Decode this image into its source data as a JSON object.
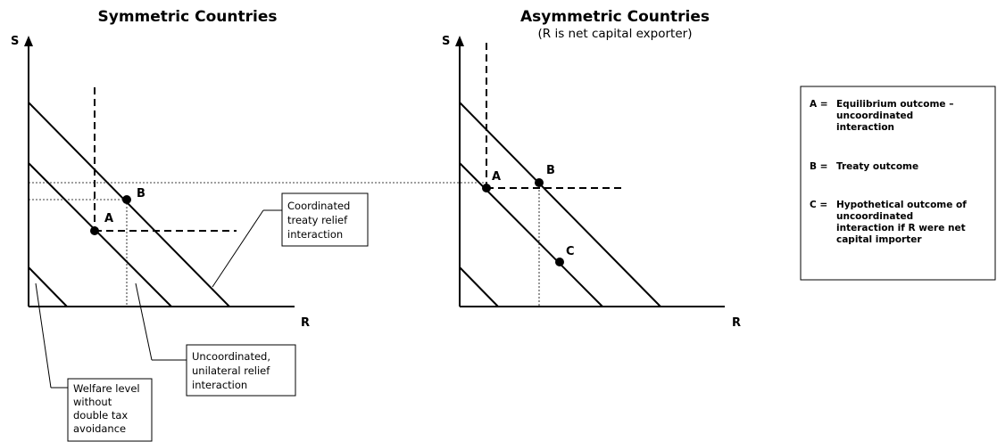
{
  "left_panel": {
    "title": "Symmetric Countries",
    "y_axis": "S",
    "x_axis": "R",
    "points": {
      "a": "A",
      "b": "B"
    }
  },
  "right_panel": {
    "title": "Asymmetric Countries",
    "subtitle": "(R is net capital exporter)",
    "y_axis": "S",
    "x_axis": "R",
    "points": {
      "a": "A",
      "b": "B",
      "c": "C"
    }
  },
  "callouts": {
    "coordinated": [
      "Coordinated",
      "treaty relief",
      "interaction"
    ],
    "uncoordinated": [
      "Uncoordinated,",
      "unilateral relief",
      "interaction"
    ],
    "welfare": [
      "Welfare level",
      "without",
      "double tax",
      "avoidance"
    ]
  },
  "legend": {
    "items": [
      {
        "key": "A =",
        "lines": [
          "Equilibrium outcome –",
          "uncoordinated",
          "interaction"
        ]
      },
      {
        "key": "B =",
        "lines": [
          "Treaty outcome"
        ]
      },
      {
        "key": "C =",
        "lines": [
          "Hypothetical outcome of",
          "uncoordinated",
          "interaction if R were net",
          "capital importer"
        ]
      }
    ]
  }
}
